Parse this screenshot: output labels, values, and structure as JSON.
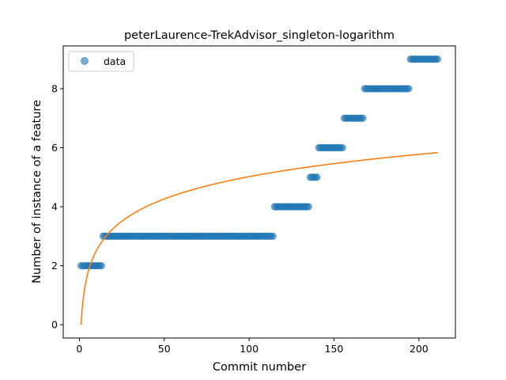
{
  "chart_data": {
    "type": "scatter",
    "title": "peterLaurence-TrekAdvisor_singleton-logarithm",
    "xlabel": "Commit number",
    "ylabel": "Number of instance of a feature",
    "xlim": [
      -9.5,
      221.5
    ],
    "ylim": [
      -0.45,
      9.45
    ],
    "xticks": [
      0,
      50,
      100,
      150,
      200
    ],
    "yticks": [
      0,
      2,
      4,
      6,
      8
    ],
    "grid": false,
    "legend_position": "top-left",
    "series": [
      {
        "name": "data",
        "kind": "scatter",
        "color": "#1f77b4",
        "alpha": 0.6,
        "segments": [
          {
            "x_from": 1,
            "x_to": 13,
            "y": 2
          },
          {
            "x_from": 14,
            "x_to": 114,
            "y": 3
          },
          {
            "x_from": 115,
            "x_to": 135,
            "y": 4
          },
          {
            "x_from": 136,
            "x_to": 140,
            "y": 5
          },
          {
            "x_from": 141,
            "x_to": 155,
            "y": 6
          },
          {
            "x_from": 156,
            "x_to": 167,
            "y": 7
          },
          {
            "x_from": 168,
            "x_to": 194,
            "y": 8
          },
          {
            "x_from": 195,
            "x_to": 211,
            "y": 9
          }
        ]
      },
      {
        "kind": "line",
        "color": "#ff7f0e",
        "formula": "y = 1.09 * ln(x)",
        "x_range": [
          1,
          211
        ]
      }
    ]
  }
}
